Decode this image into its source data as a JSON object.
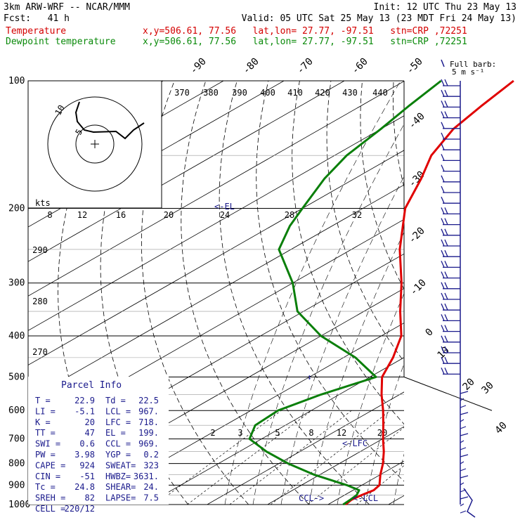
{
  "header": {
    "model": "3km ARW-WRF -- NCAR/MMM",
    "init": "Init: 12 UTC Thu 23 May 13",
    "fcst": "Fcst:   41 h",
    "valid": "Valid: 05 UTC Sat 25 May 13 (23 MDT Fri 24 May 13)",
    "temp_label": "Temperature",
    "temp_loc": "x,y=506.61, 77.56   lat,lon= 27.77, -97.51   stn=CRP ,72251",
    "dew_label": "Dewpoint temperature",
    "dew_loc": "x,y=506.61, 77.56   lat,lon= 27.77, -97.51   stn=CRP ,72251"
  },
  "colors": {
    "temperature": "#e00000",
    "dewpoint": "#0a7f0a",
    "wind": "#1a1a8c",
    "header_red": "#d40000",
    "header_green": "#0a8a0a"
  },
  "barb_label": [
    "Full barb:",
    "5 m s⁻¹"
  ],
  "hodograph": {
    "kts_label": "kts",
    "ring_labels": [
      "5",
      "10"
    ]
  },
  "parcel_info": {
    "title": "Parcel Info",
    "rows": [
      [
        "T  =",
        "22.9",
        "Td =",
        "22.5"
      ],
      [
        "LI =",
        "-5.1",
        "LCL =",
        "967."
      ],
      [
        "K  =",
        "20",
        "LFC =",
        "718."
      ],
      [
        "TT =",
        "47",
        "EL  =",
        "199."
      ],
      [
        "SWI =",
        "0.6",
        "CCL =",
        "969."
      ],
      [
        "PW =",
        "3.98",
        "YGP =",
        "0.2"
      ],
      [
        "CAPE =",
        "924",
        "SWEAT=",
        "323"
      ],
      [
        "CIN =",
        "-51",
        "HWBZ=",
        "3631."
      ],
      [
        "Tc =",
        "24.8",
        "SHEAR=",
        "24."
      ],
      [
        "SREH =",
        "82",
        "LAPSE=",
        "7.5"
      ],
      [
        "CELL =",
        "220/12",
        "",
        ""
      ]
    ]
  },
  "chart_data": {
    "type": "line",
    "title": "",
    "y_axis": {
      "scale": "log-pressure",
      "ticks": [
        "100",
        "200",
        "300",
        "400",
        "500",
        "600",
        "700",
        "800",
        "900",
        "1000"
      ],
      "range": [
        1000,
        100
      ]
    },
    "isotherm_labels": [
      "-90",
      "-80",
      "-70",
      "-60",
      "-50",
      "-40",
      "-30",
      "-20",
      "-10",
      "0",
      "10",
      "20",
      "30",
      "40"
    ],
    "theta_labels": [
      "370",
      "380",
      "390",
      "400",
      "410",
      "420",
      "430",
      "440"
    ],
    "theta_left_labels": [
      "290",
      "280",
      "270"
    ],
    "mixing_ratio_labels": [
      "2",
      "3",
      "5",
      "8",
      "12",
      "20"
    ],
    "upper_labels": [
      "8",
      "12",
      "16",
      "20",
      "24",
      "28",
      "32"
    ],
    "annotations": [
      "<-EL",
      "<-LFC",
      "CCL->",
      "<-LCL"
    ],
    "series": [
      {
        "name": "Temperature",
        "pressure": [
          1000,
          975,
          950,
          925,
          900,
          850,
          800,
          750,
          700,
          650,
          600,
          550,
          500,
          450,
          400,
          350,
          300,
          250,
          200,
          170,
          150,
          130,
          115,
          100
        ],
        "temperature": [
          22.9,
          22.5,
          22.8,
          23.4,
          22.9,
          20.0,
          17.2,
          13.9,
          10.1,
          6.2,
          1.9,
          -3.0,
          -8.0,
          -11.8,
          -16.7,
          -24.0,
          -32.0,
          -42.0,
          -53.0,
          -59.0,
          -64.0,
          -68.0,
          -70.0,
          -72.0
        ]
      },
      {
        "name": "Dewpoint temperature",
        "pressure": [
          1000,
          975,
          950,
          925,
          900,
          850,
          800,
          750,
          700,
          650,
          600,
          550,
          500,
          450,
          400,
          350,
          300,
          250,
          220,
          200,
          170,
          150,
          130,
          115,
          100
        ],
        "temperature": [
          22.5,
          22.3,
          22.0,
          21.0,
          17.5,
          9.0,
          1.5,
          -5.5,
          -12.0,
          -15.0,
          -15.5,
          -13.0,
          -9.0,
          -18.0,
          -30.0,
          -41.0,
          -50.0,
          -62.0,
          -67.0,
          -70.0,
          -75.0,
          -78.0,
          -80.0,
          -82.0,
          -84.0
        ]
      }
    ]
  }
}
